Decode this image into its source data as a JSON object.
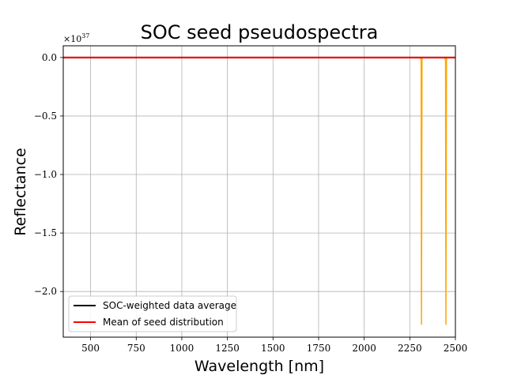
{
  "chart_data": {
    "type": "line",
    "title": "SOC seed pseudospectra",
    "xlabel": "Wavelength [nm]",
    "ylabel": "Reflectance",
    "y_offset_label": "×10^37",
    "xlim": [
      350,
      2500
    ],
    "ylim": [
      -2.39,
      0.1
    ],
    "xticks": [
      500,
      750,
      1000,
      1250,
      1500,
      1750,
      2000,
      2250,
      2500
    ],
    "xtick_labels": [
      "500",
      "750",
      "1000",
      "1250",
      "1500",
      "1750",
      "2000",
      "2250",
      "2500"
    ],
    "yticks": [
      0.0,
      -0.5,
      -1.0,
      -1.5,
      -2.0
    ],
    "ytick_labels": [
      "0.0",
      "−0.5",
      "−1.0",
      "−1.5",
      "−2.0"
    ],
    "grid": true,
    "legend_position": "lower-left",
    "series": [
      {
        "name": "",
        "color": "#ffa500",
        "x": [
          350,
          2305,
          2312,
          2314,
          2317,
          2319,
          2440,
          2446,
          2448,
          2451,
          2453,
          2500
        ],
        "y": [
          0.0,
          0.0,
          -0.02,
          -2.28,
          -0.02,
          0.0,
          0.0,
          -0.02,
          -2.28,
          -0.02,
          0.0,
          0.0
        ]
      },
      {
        "name": "SOC-weighted data average",
        "color": "#000000",
        "x": [
          350,
          2500
        ],
        "y": [
          0.0,
          0.0
        ]
      },
      {
        "name": "Mean of seed distribution",
        "color": "#ff0000",
        "x": [
          350,
          2500
        ],
        "y": [
          0.0,
          0.0
        ]
      }
    ]
  }
}
